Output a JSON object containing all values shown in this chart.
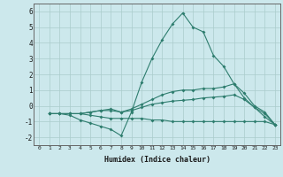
{
  "xlabel": "Humidex (Indice chaleur)",
  "x": [
    1,
    2,
    3,
    4,
    5,
    6,
    7,
    8,
    9,
    10,
    11,
    12,
    13,
    14,
    15,
    16,
    17,
    18,
    19,
    20,
    21,
    22,
    23
  ],
  "line1": [
    -0.5,
    -0.5,
    -0.6,
    -0.9,
    -1.1,
    -1.3,
    -1.5,
    -1.9,
    -0.4,
    1.5,
    3.0,
    4.2,
    5.2,
    5.9,
    5.0,
    4.7,
    3.2,
    2.5,
    1.4,
    0.5,
    -0.1,
    -0.7,
    -1.2
  ],
  "line2": [
    -0.5,
    -0.5,
    -0.5,
    -0.5,
    -0.4,
    -0.3,
    -0.2,
    -0.4,
    -0.2,
    0.1,
    0.4,
    0.7,
    0.9,
    1.0,
    1.0,
    1.1,
    1.1,
    1.2,
    1.4,
    0.8,
    0.0,
    -0.4,
    -1.2
  ],
  "line3": [
    -0.5,
    -0.5,
    -0.5,
    -0.5,
    -0.4,
    -0.3,
    -0.3,
    -0.4,
    -0.3,
    -0.1,
    0.1,
    0.2,
    0.3,
    0.35,
    0.4,
    0.5,
    0.55,
    0.6,
    0.7,
    0.4,
    -0.1,
    -0.5,
    -1.2
  ],
  "line4": [
    -0.5,
    -0.5,
    -0.5,
    -0.5,
    -0.6,
    -0.7,
    -0.8,
    -0.8,
    -0.8,
    -0.8,
    -0.9,
    -0.9,
    -1.0,
    -1.0,
    -1.0,
    -1.0,
    -1.0,
    -1.0,
    -1.0,
    -1.0,
    -1.0,
    -1.0,
    -1.2
  ],
  "line_color": "#2e7d6e",
  "bg_color": "#cce8ec",
  "grid_color": "#aacccc",
  "ylim": [
    -2.5,
    6.5
  ],
  "xlim": [
    -0.5,
    23.5
  ],
  "yticks": [
    -2,
    -1,
    0,
    1,
    2,
    3,
    4,
    5,
    6
  ],
  "xticks": [
    0,
    1,
    2,
    3,
    4,
    5,
    6,
    7,
    8,
    9,
    10,
    11,
    12,
    13,
    14,
    15,
    16,
    17,
    18,
    19,
    20,
    21,
    22,
    23
  ]
}
